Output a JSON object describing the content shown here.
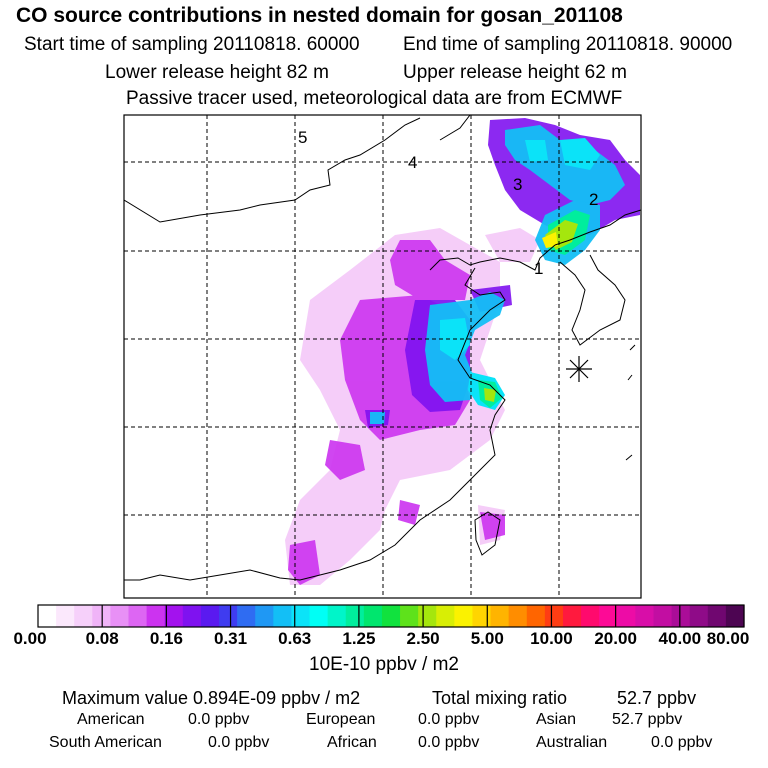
{
  "header": {
    "title": "CO  source contributions in nested domain for gosan_201108",
    "start_label": "Start time of sampling 20110818. 60000",
    "end_label": "End time of sampling 20110818. 90000",
    "lower_label": "Lower release height   82 m",
    "upper_label": "Upper release height   62 m",
    "tracer_note": "Passive tracer used, meteorological data are from ECMWF"
  },
  "map": {
    "trajectory_markers": [
      "1",
      "2",
      "3",
      "4",
      "5"
    ],
    "receptor": "gosan"
  },
  "colorbar": {
    "labels": [
      "0.00",
      "0.08",
      "0.16",
      "0.31",
      "0.63",
      "1.25",
      "2.50",
      "5.00",
      "10.00",
      "20.00",
      "40.00",
      "80.00"
    ],
    "units": "10E-10 ppbv / m2",
    "colors": [
      "#ffffff",
      "#fbe8fc",
      "#f6d0fa",
      "#f0b4f8",
      "#e890f6",
      "#dd66f3",
      "#cc33f0",
      "#a312ee",
      "#7f12f0",
      "#5a1af0",
      "#3f3cf0",
      "#2f6cf2",
      "#1f98f4",
      "#13bff6",
      "#0be3f8",
      "#00fff5",
      "#00f5c9",
      "#00ee9d",
      "#00e66e",
      "#11e23e",
      "#5ee21b",
      "#a5e60d",
      "#d8ee05",
      "#fbf200",
      "#ffd500",
      "#ffb400",
      "#ff8d00",
      "#ff6500",
      "#ff3d13",
      "#ff1a3e",
      "#ff0a6d",
      "#fd0a96",
      "#ed0ca6",
      "#d80ea8",
      "#c20ea2",
      "#aa0d98",
      "#8f0b88",
      "#700770",
      "#4d0552"
    ]
  },
  "chart_data": {
    "type": "heatmap",
    "title": "CO  source contributions in nested domain for gosan_201108",
    "color_scale_breaks": [
      0.0,
      0.08,
      0.16,
      0.31,
      0.63,
      1.25,
      2.5,
      5.0,
      10.0,
      20.0,
      40.0,
      80.0
    ],
    "units": "10E-10 ppbv / m2",
    "max_value_ppbv_per_m2": 8.94e-10,
    "total_mixing_ratio_ppbv": 52.7
  },
  "summary": {
    "max_value": "Maximum value  0.894E-09 ppbv / m2",
    "total_label": "Total mixing ratio",
    "total_value": "52.7 ppbv",
    "regions": [
      {
        "name": "American",
        "value": "0.0 ppbv"
      },
      {
        "name": "European",
        "value": "0.0 ppbv"
      },
      {
        "name": "Asian",
        "value": "52.7 ppbv"
      },
      {
        "name": "South American",
        "value": "0.0 ppbv"
      },
      {
        "name": "African",
        "value": "0.0 ppbv"
      },
      {
        "name": "Australian",
        "value": "0.0 ppbv"
      }
    ]
  }
}
